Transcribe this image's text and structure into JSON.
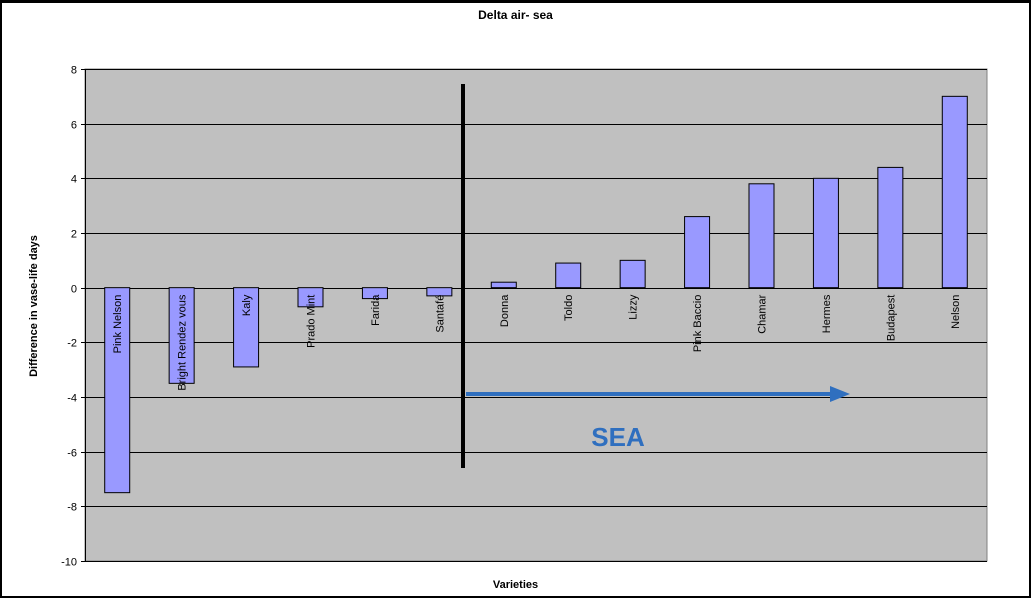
{
  "chart_data": {
    "type": "bar",
    "title": "Delta air- sea",
    "xlabel": "Varieties",
    "ylabel": "Difference in vase-life days",
    "ylim": [
      -10,
      8
    ],
    "yticks": [
      8,
      6,
      4,
      2,
      0,
      -2,
      -4,
      -6,
      -8,
      -10
    ],
    "grid": true,
    "categories": [
      "Pink Nelson",
      "Bright Rendez vous",
      "Kaly",
      "Prado Mint",
      "Farida",
      "Santafé",
      "Donna",
      "Toldo",
      "Lizzy",
      "Pink Baccio",
      "Chamar",
      "Hermes",
      "Budapest",
      "Nelson"
    ],
    "values": [
      -7.5,
      -3.5,
      -2.9,
      -0.7,
      -0.4,
      -0.3,
      0.2,
      0.9,
      1.0,
      2.6,
      3.8,
      4.0,
      4.4,
      7.0
    ],
    "annotation": {
      "text": "SEA"
    },
    "colors": {
      "bar_fill": "#9999ff",
      "bar_stroke": "#000000",
      "plot_bg": "#c0c0c0",
      "grid": "#000000",
      "arrow": "#2f6fbf",
      "divider": "#000000"
    }
  }
}
